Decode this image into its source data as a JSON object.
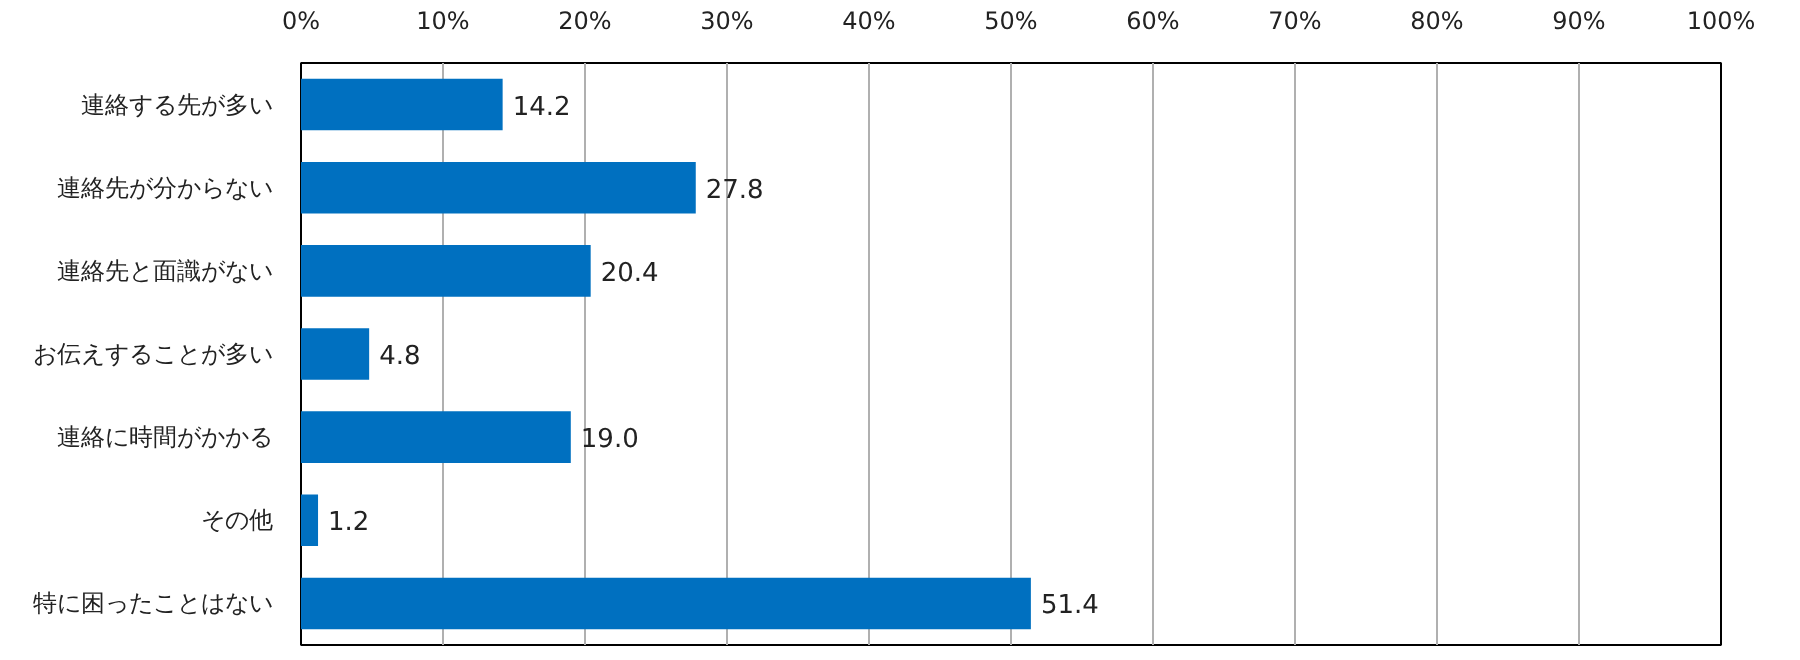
{
  "chart_data": {
    "type": "bar",
    "orientation": "horizontal",
    "categories": [
      "連絡する先が多い",
      "連絡先が分からない",
      "連絡先と面識がない",
      "お伝えすることが多い",
      "連絡に時間がかかる",
      "その他",
      "特に困ったことはない"
    ],
    "values": [
      14.2,
      27.8,
      20.4,
      4.8,
      19.0,
      1.2,
      51.4
    ],
    "color": "#0070c0",
    "xlim": [
      0,
      100
    ],
    "xticks": [
      {
        "value": 0,
        "label": "0%"
      },
      {
        "value": 10,
        "label": "10%"
      },
      {
        "value": 20,
        "label": "20%"
      },
      {
        "value": 30,
        "label": "30%"
      },
      {
        "value": 40,
        "label": "40%"
      },
      {
        "value": 50,
        "label": "50%"
      },
      {
        "value": 60,
        "label": "60%"
      },
      {
        "value": 70,
        "label": "70%"
      },
      {
        "value": 80,
        "label": "80%"
      },
      {
        "value": 90,
        "label": "90%"
      },
      {
        "value": 100,
        "label": "100%"
      }
    ],
    "value_labels": [
      "14.2",
      "27.8",
      "20.4",
      "4.8",
      "19.0",
      "1.2",
      "51.4"
    ],
    "grid": "x"
  }
}
